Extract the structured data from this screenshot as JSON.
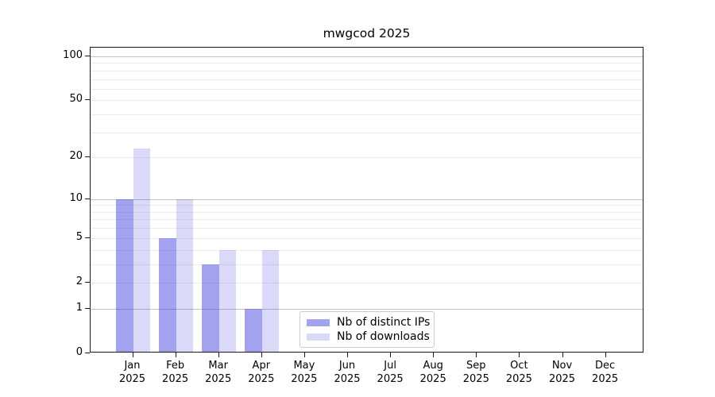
{
  "chart_data": {
    "type": "bar",
    "title": "mwgcod 2025",
    "categories": [
      "Jan",
      "Feb",
      "Mar",
      "Apr",
      "May",
      "Jun",
      "Jul",
      "Aug",
      "Sep",
      "Oct",
      "Nov",
      "Dec"
    ],
    "year_label": "2025",
    "series": [
      {
        "name": "Nb of distinct IPs",
        "color": "rgba(60,60,220,0.48)",
        "values": [
          10,
          5,
          3,
          1,
          0,
          0,
          0,
          0,
          0,
          0,
          0,
          0
        ]
      },
      {
        "name": "Nb of downloads",
        "color": "rgba(60,60,220,0.19)",
        "values": [
          23,
          10,
          4,
          4,
          0,
          0,
          0,
          0,
          0,
          0,
          0,
          0
        ]
      }
    ],
    "xlabel": "",
    "ylabel": "",
    "yscale": "log(1+x)",
    "ylim": [
      0,
      100
    ],
    "ytick_labels": [
      "0",
      "1",
      "2",
      "5",
      "10",
      "20",
      "50",
      "100"
    ],
    "ytick_values": [
      0,
      1,
      2,
      5,
      10,
      20,
      50,
      100
    ],
    "major_gridlines": [
      1,
      10,
      100
    ],
    "minor_gridlines": [
      2,
      3,
      4,
      5,
      6,
      7,
      8,
      9,
      20,
      30,
      40,
      50,
      60,
      70,
      80,
      90
    ],
    "grid": "on",
    "legend_position": "lower center",
    "colors": {
      "spine": "#1a1a1a",
      "major_grid": "#c2c2c2",
      "minor_grid": "#ececec",
      "legend_border": "#cccccc"
    }
  }
}
